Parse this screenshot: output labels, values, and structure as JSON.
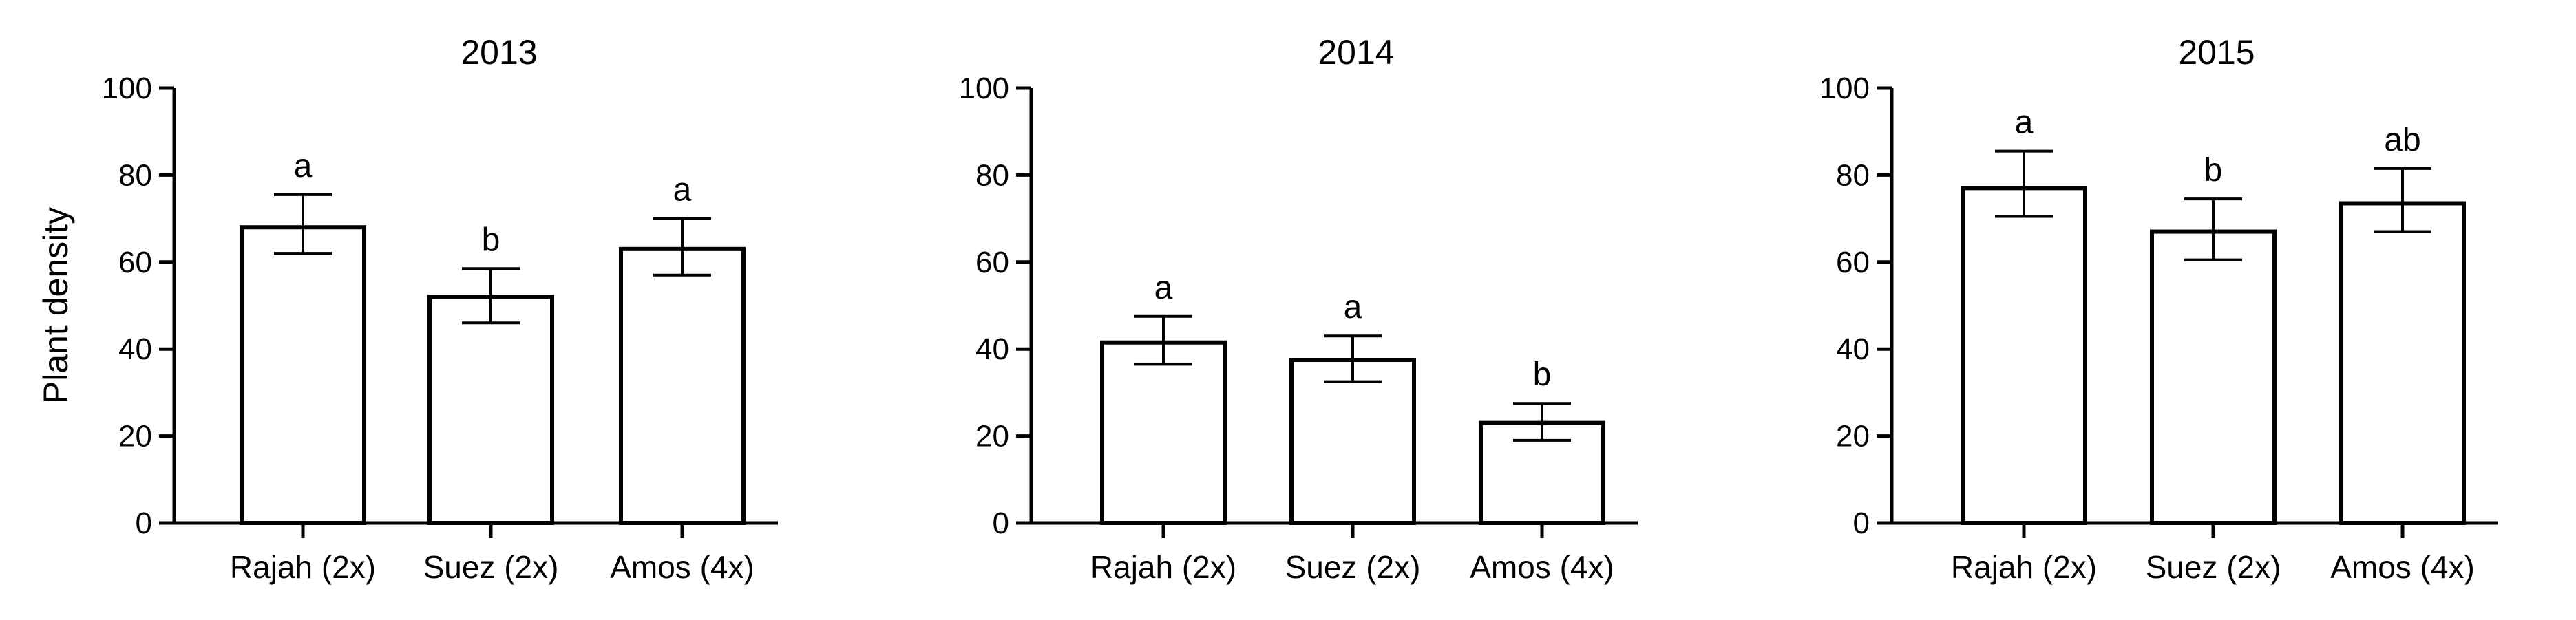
{
  "chart_data": [
    {
      "type": "bar",
      "title": "2013",
      "ylabel": "Plant density",
      "ylim": [
        0,
        100
      ],
      "yticks": [
        0,
        20,
        40,
        60,
        80,
        100
      ],
      "categories": [
        "Rajah (2x)",
        "Suez (2x)",
        "Amos (4x)"
      ],
      "values": [
        68,
        52,
        63
      ],
      "error_low": [
        62,
        46,
        57
      ],
      "error_high": [
        75.5,
        58.5,
        70
      ],
      "significance": [
        "a",
        "b",
        "a"
      ]
    },
    {
      "type": "bar",
      "title": "2014",
      "ylim": [
        0,
        100
      ],
      "yticks": [
        0,
        20,
        40,
        60,
        80,
        100
      ],
      "categories": [
        "Rajah (2x)",
        "Suez (2x)",
        "Amos (4x)"
      ],
      "values": [
        41.5,
        37.5,
        23
      ],
      "error_low": [
        36.5,
        32.5,
        19
      ],
      "error_high": [
        47.5,
        43,
        27.5
      ],
      "significance": [
        "a",
        "a",
        "b"
      ]
    },
    {
      "type": "bar",
      "title": "2015",
      "ylim": [
        0,
        100
      ],
      "yticks": [
        0,
        20,
        40,
        60,
        80,
        100
      ],
      "categories": [
        "Rajah (2x)",
        "Suez (2x)",
        "Amos (4x)"
      ],
      "values": [
        77,
        67,
        73.5
      ],
      "error_low": [
        70.5,
        60.5,
        67
      ],
      "error_high": [
        85.5,
        74.5,
        81.5
      ],
      "significance": [
        "a",
        "b",
        "ab"
      ]
    }
  ]
}
